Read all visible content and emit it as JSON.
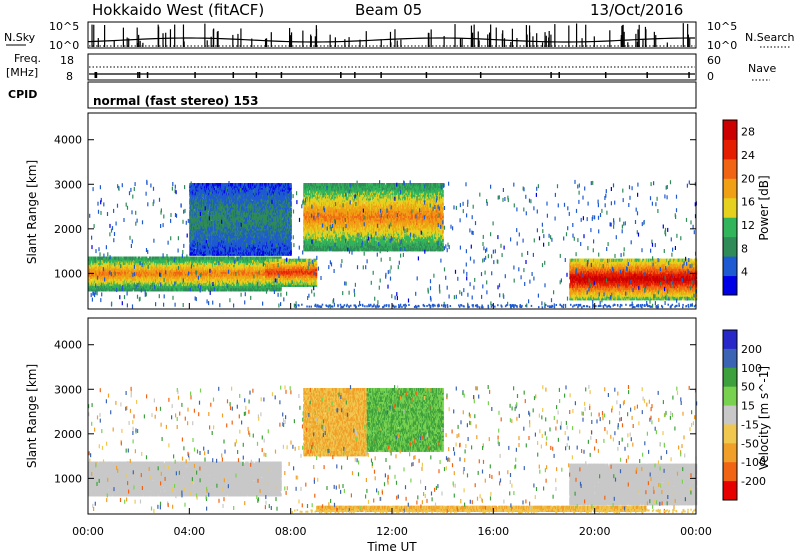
{
  "header": {
    "station": "Hokkaido West (fitACF)",
    "beam": "Beam 05",
    "date": "13/Oct/2016"
  },
  "top_panels": {
    "nsky": {
      "label": "N.Sky",
      "ticks": [
        "10^5",
        "10^0"
      ]
    },
    "nsearch": {
      "label": "N.Search",
      "ticks": [
        "10^5",
        "10^0"
      ]
    },
    "freq": {
      "label_line1": "Freq.",
      "label_line2": "[MHz]",
      "ticks": [
        "18",
        "8"
      ]
    },
    "nave": {
      "label": "Nave",
      "ticks": [
        "60",
        "0"
      ]
    },
    "cpid": {
      "label": "CPID",
      "mode_text": "normal (fast stereo) 153"
    }
  },
  "colors": {
    "power": [
      "#0000e6",
      "#1e5ad2",
      "#2f8b57",
      "#32b45a",
      "#e6d21e",
      "#f0a014",
      "#f06414",
      "#e61e00",
      "#cc0000"
    ],
    "velocity": [
      "#2828c8",
      "#3c64b4",
      "#3ca03c",
      "#78d250",
      "#c8c8c8",
      "#f0c850",
      "#f0a028",
      "#f06414",
      "#e60000"
    ]
  },
  "chart_data": [
    {
      "type": "heatmap",
      "name": "power",
      "ylabel": "Slant Range [km]",
      "xlabel": "Time UT",
      "x_ticks": [
        "00:00",
        "04:00",
        "08:00",
        "12:00",
        "16:00",
        "20:00",
        "00:00"
      ],
      "y_ticks": [
        1000,
        2000,
        3000,
        4000
      ],
      "ylim": [
        200,
        4600
      ],
      "xlim_hours": [
        0,
        24
      ],
      "colorbar_label": "Power [dB]",
      "colorbar_ticks": [
        4,
        8,
        12,
        16,
        20,
        24,
        28
      ],
      "colorbar_range": [
        0,
        30
      ],
      "regions": [
        {
          "t0": 0.0,
          "t1": 7.6,
          "r0": 600,
          "r1": 1350,
          "level": 20
        },
        {
          "t0": 7.0,
          "t1": 9.0,
          "r0": 700,
          "r1": 1300,
          "level": 24
        },
        {
          "t0": 8.5,
          "t1": 14.0,
          "r0": 1500,
          "r1": 3000,
          "level": 20
        },
        {
          "t0": 19.0,
          "t1": 24.0,
          "r0": 400,
          "r1": 1300,
          "level": 28
        },
        {
          "t0": 4.0,
          "t1": 8.0,
          "r0": 1400,
          "r1": 3000,
          "level": 8
        }
      ]
    },
    {
      "type": "heatmap",
      "name": "velocity",
      "ylabel": "Slant Range [km]",
      "xlabel": "Time UT",
      "x_ticks": [
        "00:00",
        "04:00",
        "08:00",
        "12:00",
        "16:00",
        "20:00",
        "00:00"
      ],
      "y_ticks": [
        1000,
        2000,
        3000,
        4000
      ],
      "ylim": [
        200,
        4600
      ],
      "xlim_hours": [
        0,
        24
      ],
      "colorbar_label": "Velocity [m s^-1]",
      "colorbar_ticks": [
        200,
        100,
        50,
        15,
        -15,
        -50,
        -100,
        -200
      ],
      "regions": [
        {
          "t0": 0.0,
          "t1": 7.6,
          "r0": 600,
          "r1": 1350,
          "level": 0
        },
        {
          "t0": 8.5,
          "t1": 11.0,
          "r0": 1500,
          "r1": 3000,
          "level": -50
        },
        {
          "t0": 11.0,
          "t1": 14.0,
          "r0": 1600,
          "r1": 3000,
          "level": 50
        },
        {
          "t0": 19.0,
          "t1": 24.0,
          "r0": 400,
          "r1": 1300,
          "level": 0
        },
        {
          "t0": 9.0,
          "t1": 22.0,
          "r0": 250,
          "r1": 350,
          "level": -50
        }
      ]
    }
  ]
}
